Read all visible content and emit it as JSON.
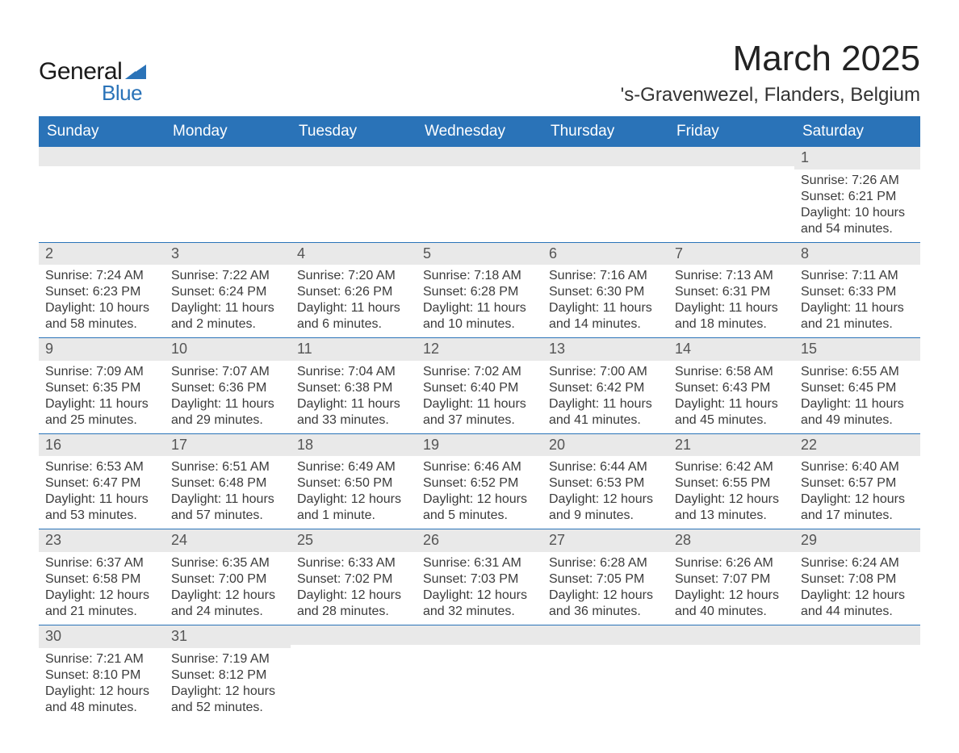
{
  "brand": {
    "general": "General",
    "blue": "Blue",
    "triangle_color": "#2a73b8"
  },
  "title": "March 2025",
  "subtitle": "'s-Gravenwezel, Flanders, Belgium",
  "colors": {
    "header_bg": "#2a73b8",
    "header_fg": "#ffffff",
    "daynum_bg": "#e9e9e9",
    "row_border": "#2a73b8",
    "text": "#3b3b3b"
  },
  "fonts": {
    "title_pt": 44,
    "subtitle_pt": 24,
    "header_pt": 19,
    "day_pt": 18,
    "body_pt": 16
  },
  "day_headers": [
    "Sunday",
    "Monday",
    "Tuesday",
    "Wednesday",
    "Thursday",
    "Friday",
    "Saturday"
  ],
  "weeks": [
    [
      {
        "n": "",
        "sr": "",
        "ss": "",
        "dl": ""
      },
      {
        "n": "",
        "sr": "",
        "ss": "",
        "dl": ""
      },
      {
        "n": "",
        "sr": "",
        "ss": "",
        "dl": ""
      },
      {
        "n": "",
        "sr": "",
        "ss": "",
        "dl": ""
      },
      {
        "n": "",
        "sr": "",
        "ss": "",
        "dl": ""
      },
      {
        "n": "",
        "sr": "",
        "ss": "",
        "dl": ""
      },
      {
        "n": "1",
        "sr": "Sunrise: 7:26 AM",
        "ss": "Sunset: 6:21 PM",
        "dl": "Daylight: 10 hours and 54 minutes."
      }
    ],
    [
      {
        "n": "2",
        "sr": "Sunrise: 7:24 AM",
        "ss": "Sunset: 6:23 PM",
        "dl": "Daylight: 10 hours and 58 minutes."
      },
      {
        "n": "3",
        "sr": "Sunrise: 7:22 AM",
        "ss": "Sunset: 6:24 PM",
        "dl": "Daylight: 11 hours and 2 minutes."
      },
      {
        "n": "4",
        "sr": "Sunrise: 7:20 AM",
        "ss": "Sunset: 6:26 PM",
        "dl": "Daylight: 11 hours and 6 minutes."
      },
      {
        "n": "5",
        "sr": "Sunrise: 7:18 AM",
        "ss": "Sunset: 6:28 PM",
        "dl": "Daylight: 11 hours and 10 minutes."
      },
      {
        "n": "6",
        "sr": "Sunrise: 7:16 AM",
        "ss": "Sunset: 6:30 PM",
        "dl": "Daylight: 11 hours and 14 minutes."
      },
      {
        "n": "7",
        "sr": "Sunrise: 7:13 AM",
        "ss": "Sunset: 6:31 PM",
        "dl": "Daylight: 11 hours and 18 minutes."
      },
      {
        "n": "8",
        "sr": "Sunrise: 7:11 AM",
        "ss": "Sunset: 6:33 PM",
        "dl": "Daylight: 11 hours and 21 minutes."
      }
    ],
    [
      {
        "n": "9",
        "sr": "Sunrise: 7:09 AM",
        "ss": "Sunset: 6:35 PM",
        "dl": "Daylight: 11 hours and 25 minutes."
      },
      {
        "n": "10",
        "sr": "Sunrise: 7:07 AM",
        "ss": "Sunset: 6:36 PM",
        "dl": "Daylight: 11 hours and 29 minutes."
      },
      {
        "n": "11",
        "sr": "Sunrise: 7:04 AM",
        "ss": "Sunset: 6:38 PM",
        "dl": "Daylight: 11 hours and 33 minutes."
      },
      {
        "n": "12",
        "sr": "Sunrise: 7:02 AM",
        "ss": "Sunset: 6:40 PM",
        "dl": "Daylight: 11 hours and 37 minutes."
      },
      {
        "n": "13",
        "sr": "Sunrise: 7:00 AM",
        "ss": "Sunset: 6:42 PM",
        "dl": "Daylight: 11 hours and 41 minutes."
      },
      {
        "n": "14",
        "sr": "Sunrise: 6:58 AM",
        "ss": "Sunset: 6:43 PM",
        "dl": "Daylight: 11 hours and 45 minutes."
      },
      {
        "n": "15",
        "sr": "Sunrise: 6:55 AM",
        "ss": "Sunset: 6:45 PM",
        "dl": "Daylight: 11 hours and 49 minutes."
      }
    ],
    [
      {
        "n": "16",
        "sr": "Sunrise: 6:53 AM",
        "ss": "Sunset: 6:47 PM",
        "dl": "Daylight: 11 hours and 53 minutes."
      },
      {
        "n": "17",
        "sr": "Sunrise: 6:51 AM",
        "ss": "Sunset: 6:48 PM",
        "dl": "Daylight: 11 hours and 57 minutes."
      },
      {
        "n": "18",
        "sr": "Sunrise: 6:49 AM",
        "ss": "Sunset: 6:50 PM",
        "dl": "Daylight: 12 hours and 1 minute."
      },
      {
        "n": "19",
        "sr": "Sunrise: 6:46 AM",
        "ss": "Sunset: 6:52 PM",
        "dl": "Daylight: 12 hours and 5 minutes."
      },
      {
        "n": "20",
        "sr": "Sunrise: 6:44 AM",
        "ss": "Sunset: 6:53 PM",
        "dl": "Daylight: 12 hours and 9 minutes."
      },
      {
        "n": "21",
        "sr": "Sunrise: 6:42 AM",
        "ss": "Sunset: 6:55 PM",
        "dl": "Daylight: 12 hours and 13 minutes."
      },
      {
        "n": "22",
        "sr": "Sunrise: 6:40 AM",
        "ss": "Sunset: 6:57 PM",
        "dl": "Daylight: 12 hours and 17 minutes."
      }
    ],
    [
      {
        "n": "23",
        "sr": "Sunrise: 6:37 AM",
        "ss": "Sunset: 6:58 PM",
        "dl": "Daylight: 12 hours and 21 minutes."
      },
      {
        "n": "24",
        "sr": "Sunrise: 6:35 AM",
        "ss": "Sunset: 7:00 PM",
        "dl": "Daylight: 12 hours and 24 minutes."
      },
      {
        "n": "25",
        "sr": "Sunrise: 6:33 AM",
        "ss": "Sunset: 7:02 PM",
        "dl": "Daylight: 12 hours and 28 minutes."
      },
      {
        "n": "26",
        "sr": "Sunrise: 6:31 AM",
        "ss": "Sunset: 7:03 PM",
        "dl": "Daylight: 12 hours and 32 minutes."
      },
      {
        "n": "27",
        "sr": "Sunrise: 6:28 AM",
        "ss": "Sunset: 7:05 PM",
        "dl": "Daylight: 12 hours and 36 minutes."
      },
      {
        "n": "28",
        "sr": "Sunrise: 6:26 AM",
        "ss": "Sunset: 7:07 PM",
        "dl": "Daylight: 12 hours and 40 minutes."
      },
      {
        "n": "29",
        "sr": "Sunrise: 6:24 AM",
        "ss": "Sunset: 7:08 PM",
        "dl": "Daylight: 12 hours and 44 minutes."
      }
    ],
    [
      {
        "n": "30",
        "sr": "Sunrise: 7:21 AM",
        "ss": "Sunset: 8:10 PM",
        "dl": "Daylight: 12 hours and 48 minutes."
      },
      {
        "n": "31",
        "sr": "Sunrise: 7:19 AM",
        "ss": "Sunset: 8:12 PM",
        "dl": "Daylight: 12 hours and 52 minutes."
      },
      {
        "n": "",
        "sr": "",
        "ss": "",
        "dl": ""
      },
      {
        "n": "",
        "sr": "",
        "ss": "",
        "dl": ""
      },
      {
        "n": "",
        "sr": "",
        "ss": "",
        "dl": ""
      },
      {
        "n": "",
        "sr": "",
        "ss": "",
        "dl": ""
      },
      {
        "n": "",
        "sr": "",
        "ss": "",
        "dl": ""
      }
    ]
  ]
}
